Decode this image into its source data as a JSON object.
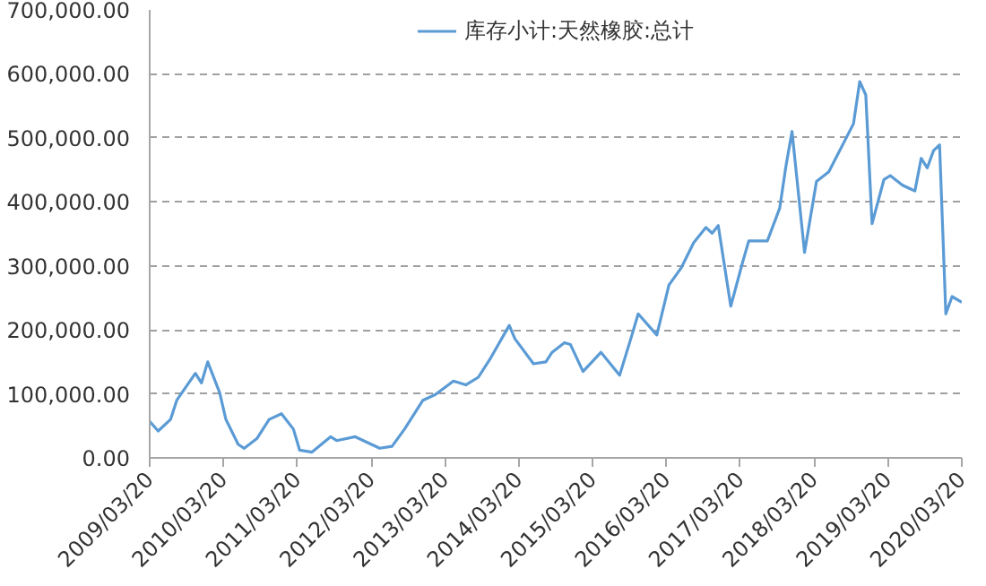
{
  "chart_data": {
    "type": "line",
    "legend": "top",
    "grid": "y",
    "line_style": "solid",
    "xlim": [
      "2009-03-20",
      "2020-03-20"
    ],
    "xticks": [
      {
        "value": "2009-03-20",
        "label": "2009/03/20"
      },
      {
        "value": "2010-03-20",
        "label": "2010/03/20"
      },
      {
        "value": "2011-03-20",
        "label": "2011/03/20"
      },
      {
        "value": "2012-03-20",
        "label": "2012/03/20"
      },
      {
        "value": "2013-03-20",
        "label": "2013/03/20"
      },
      {
        "value": "2014-03-20",
        "label": "2014/03/20"
      },
      {
        "value": "2015-03-20",
        "label": "2015/03/20"
      },
      {
        "value": "2016-03-20",
        "label": "2016/03/20"
      },
      {
        "value": "2017-03-20",
        "label": "2017/03/20"
      },
      {
        "value": "2018-03-20",
        "label": "2018/03/20"
      },
      {
        "value": "2019-03-20",
        "label": "2019/03/20"
      },
      {
        "value": "2020-03-20",
        "label": "2020/03/20"
      }
    ],
    "ylim": [
      0,
      700000
    ],
    "yticks": [
      {
        "value": 0,
        "label": "0.00"
      },
      {
        "value": 100000,
        "label": "100,000.00"
      },
      {
        "value": 200000,
        "label": "200,000.00"
      },
      {
        "value": 300000,
        "label": "300,000.00"
      },
      {
        "value": 400000,
        "label": "400,000.00"
      },
      {
        "value": 500000,
        "label": "500,000.00"
      },
      {
        "value": 600000,
        "label": "600,000.00"
      },
      {
        "value": 700000,
        "label": "700,000.00"
      }
    ],
    "x": [
      "2009-03-20",
      "2009-05",
      "2009-07",
      "2009-08",
      "2009-11",
      "2009-12",
      "2010-01",
      "2010-03",
      "2010-04",
      "2010-06",
      "2010-07",
      "2010-09",
      "2010-11",
      "2011-01",
      "2011-03",
      "2011-04",
      "2011-06",
      "2011-09",
      "2011-10",
      "2012-01",
      "2012-05",
      "2012-07",
      "2012-09",
      "2012-12",
      "2013-02",
      "2013-05",
      "2013-07",
      "2013-09",
      "2013-11",
      "2014-02",
      "2014-03",
      "2014-06",
      "2014-08",
      "2014-09",
      "2014-11",
      "2014-12",
      "2015-02",
      "2015-05",
      "2015-08",
      "2015-10",
      "2015-11",
      "2016-02",
      "2016-04",
      "2016-06",
      "2016-08",
      "2016-10",
      "2016-11",
      "2016-12",
      "2017-02",
      "2017-04",
      "2017-05",
      "2017-08",
      "2017-10",
      "2017-11",
      "2017-12",
      "2018-02",
      "2018-04",
      "2018-06",
      "2018-10",
      "2018-11",
      "2018-12",
      "2019-01",
      "2019-03",
      "2019-04",
      "2019-06",
      "2019-08",
      "2019-09",
      "2019-10",
      "2019-11",
      "2019-12",
      "2020-01",
      "2020-02",
      "2020-03-20"
    ],
    "series": [
      {
        "name": "库存小计:天然橡胶:总计",
        "color": "#5b9bd5",
        "values": [
          57000,
          42000,
          60000,
          90000,
          132000,
          117000,
          150000,
          102000,
          60000,
          21000,
          15000,
          30000,
          60000,
          69000,
          45000,
          12000,
          9000,
          33000,
          27000,
          33000,
          15000,
          18000,
          45000,
          90000,
          99000,
          120000,
          114000,
          126000,
          156000,
          207000,
          186000,
          147000,
          150000,
          165000,
          180000,
          177000,
          135000,
          165000,
          129000,
          192000,
          225000,
          192000,
          270000,
          297000,
          336000,
          360000,
          351000,
          363000,
          237000,
          306000,
          339000,
          339000,
          390000,
          456000,
          510000,
          321000,
          432000,
          447000,
          522000,
          588000,
          567000,
          366000,
          435000,
          441000,
          426000,
          417000,
          468000,
          453000,
          480000,
          489000,
          225000,
          252000,
          243000
        ]
      }
    ]
  }
}
